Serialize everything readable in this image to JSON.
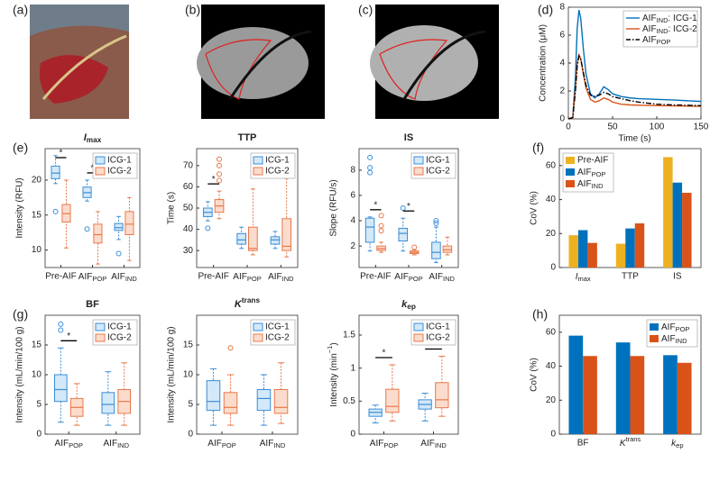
{
  "panel_labels": [
    "(a)",
    "(b)",
    "(c)",
    "(d)",
    "(e)",
    "(f)",
    "(g)",
    "(h)"
  ],
  "chart_data": [
    {
      "type": "line",
      "xlabel": "Time (s)",
      "ylabel": "Concentration (μM)",
      "xlim": [
        0,
        150
      ],
      "ylim": [
        0,
        8
      ],
      "xticks": [
        0,
        50,
        100,
        150
      ],
      "yticks": [
        0,
        2,
        4,
        6,
        8
      ],
      "legend": "upper right",
      "x": [
        0,
        5,
        8,
        10,
        12,
        14,
        17,
        20,
        25,
        30,
        35,
        40,
        45,
        50,
        60,
        70,
        80,
        100,
        120,
        150
      ],
      "series": [
        {
          "name": {
            "main": "AIF",
            "sub": "IND",
            "rest": ": ICG-1"
          },
          "color": "#0072bd",
          "style": "solid",
          "values": [
            0,
            0.1,
            3,
            6.5,
            7.8,
            7.2,
            5,
            3.2,
            1.8,
            1.5,
            1.8,
            2.3,
            2.1,
            1.8,
            1.6,
            1.5,
            1.45,
            1.4,
            1.35,
            1.25
          ]
        },
        {
          "name": {
            "main": "AIF",
            "sub": "IND",
            "rest": ": ICG-2"
          },
          "color": "#d95319",
          "style": "solid",
          "values": [
            0,
            0.1,
            2.2,
            4,
            4.6,
            4.3,
            3.2,
            2.2,
            1.4,
            1.2,
            1.3,
            1.5,
            1.4,
            1.2,
            1.05,
            1,
            0.98,
            0.95,
            0.93,
            0.9
          ]
        },
        {
          "name": {
            "main": "AIF",
            "sub": "POP"
          },
          "color": "#000000",
          "style": "dashdot",
          "values": [
            0,
            0.1,
            2,
            3.8,
            4.5,
            4.3,
            3.3,
            2.4,
            1.7,
            1.6,
            1.7,
            1.9,
            1.8,
            1.6,
            1.45,
            1.3,
            1.2,
            1.05,
            1,
            0.95
          ]
        }
      ]
    },
    {
      "type": "boxplot",
      "title": {
        "main": "I",
        "sub": "max"
      },
      "ylabel": "Intensity (RFU)",
      "ylim": [
        7.5,
        24.5
      ],
      "yticks": [
        10,
        15,
        20
      ],
      "categories": [
        "Pre-AIF",
        {
          "main": "AIF",
          "sub": "POP"
        },
        {
          "main": "AIF",
          "sub": "IND"
        }
      ],
      "stars": [
        "*",
        "*",
        null
      ],
      "series": [
        {
          "name": "ICG-1",
          "color": "#3b8ed8",
          "fill": "#d3e8f8",
          "boxes": [
            {
              "min": 19.5,
              "q1": 20.2,
              "median": 21,
              "q3": 22,
              "max": 23.5,
              "outliers": [
                15.5
              ]
            },
            {
              "min": 17,
              "q1": 17.5,
              "median": 18.2,
              "q3": 19,
              "max": 20,
              "outliers": [
                13
              ]
            },
            {
              "min": 11.5,
              "q1": 12.8,
              "median": 13.2,
              "q3": 13.8,
              "max": 14.8,
              "outliers": [
                9.5
              ]
            }
          ]
        },
        {
          "name": "ICG-2",
          "color": "#e8784a",
          "fill": "#fbdccc",
          "boxes": [
            {
              "min": 10.3,
              "q1": 14,
              "median": 15.2,
              "q3": 16.5,
              "max": 20,
              "outliers": []
            },
            {
              "min": 8,
              "q1": 11,
              "median": 12.2,
              "q3": 13.7,
              "max": 15.5,
              "outliers": []
            },
            {
              "min": 8.5,
              "q1": 12.2,
              "median": 13.7,
              "q3": 15.5,
              "max": 17.5,
              "outliers": []
            }
          ]
        }
      ]
    },
    {
      "type": "boxplot",
      "title": "TTP",
      "ylabel": "Time (s)",
      "ylim": [
        22,
        78
      ],
      "yticks": [
        30,
        40,
        50,
        60,
        70
      ],
      "categories": [
        "Pre-AIF",
        {
          "main": "AIF",
          "sub": "POP"
        },
        {
          "main": "AIF",
          "sub": "IND"
        }
      ],
      "stars": [
        "*",
        null,
        null
      ],
      "series": [
        {
          "name": "ICG-1",
          "color": "#3b8ed8",
          "fill": "#d3e8f8",
          "boxes": [
            {
              "min": 44,
              "q1": 46,
              "median": 48,
              "q3": 50,
              "max": 53,
              "outliers": [
                40.5
              ]
            },
            {
              "min": 31,
              "q1": 33,
              "median": 35,
              "q3": 38,
              "max": 41,
              "outliers": []
            },
            {
              "min": 31,
              "q1": 33,
              "median": 35,
              "q3": 36.5,
              "max": 39,
              "outliers": []
            }
          ]
        },
        {
          "name": "ICG-2",
          "color": "#e8784a",
          "fill": "#fbdccc",
          "boxes": [
            {
              "min": 45,
              "q1": 48,
              "median": 51,
              "q3": 54,
              "max": 58,
              "outliers": [
                63,
                66,
                70,
                73
              ]
            },
            {
              "min": 28,
              "q1": 30,
              "median": 31,
              "q3": 41,
              "max": 59,
              "outliers": []
            },
            {
              "min": 27,
              "q1": 30,
              "median": 32,
              "q3": 45,
              "max": 64,
              "outliers": []
            }
          ]
        }
      ]
    },
    {
      "type": "boxplot",
      "title": "IS",
      "ylabel": "Slope (RFU/s)",
      "ylim": [
        0.3,
        9.7
      ],
      "yticks": [
        2,
        4,
        6,
        8
      ],
      "categories": [
        "Pre-AIF",
        {
          "main": "AIF",
          "sub": "POP"
        },
        {
          "main": "AIF",
          "sub": "IND"
        }
      ],
      "stars": [
        "*",
        "*",
        null
      ],
      "series": [
        {
          "name": "ICG-1",
          "color": "#3b8ed8",
          "fill": "#d3e8f8",
          "boxes": [
            {
              "min": 1.6,
              "q1": 2.3,
              "median": 3.5,
              "q3": 4.2,
              "max": 4.3,
              "outliers": [
                7.8,
                8.2,
                9
              ]
            },
            {
              "min": 1.6,
              "q1": 2.4,
              "median": 3,
              "q3": 3.4,
              "max": 4.2,
              "outliers": [
                5
              ]
            },
            {
              "min": 0.7,
              "q1": 1,
              "median": 1.5,
              "q3": 2.3,
              "max": 3.5,
              "outliers": [
                3.8,
                4
              ]
            }
          ]
        },
        {
          "name": "ICG-2",
          "color": "#e8784a",
          "fill": "#fbdccc",
          "boxes": [
            {
              "min": 1.5,
              "q1": 1.65,
              "median": 1.8,
              "q3": 2,
              "max": 2.3,
              "outliers": [
                3.2,
                3.6,
                4.4
              ]
            },
            {
              "min": 1.3,
              "q1": 1.4,
              "median": 1.5,
              "q3": 1.6,
              "max": 1.7,
              "outliers": [
                1.9
              ]
            },
            {
              "min": 1.3,
              "q1": 1.5,
              "median": 1.7,
              "q3": 2,
              "max": 2.7,
              "outliers": []
            }
          ]
        }
      ]
    },
    {
      "type": "bar",
      "ylabel": "CoV (%)",
      "ylim": [
        0,
        70
      ],
      "yticks": [
        0,
        20,
        40,
        60
      ],
      "legend": "upper left",
      "categories": [
        {
          "main": "I",
          "sub": "max"
        },
        "TTP",
        "IS"
      ],
      "series": [
        {
          "name": "Pre-AIF",
          "color": "#edb120",
          "values": [
            19,
            14,
            65
          ]
        },
        {
          "name": {
            "main": "AIF",
            "sub": "POP"
          },
          "color": "#0072bd",
          "values": [
            22,
            23,
            50
          ]
        },
        {
          "name": {
            "main": "AIF",
            "sub": "IND"
          },
          "color": "#d95319",
          "values": [
            14.5,
            26,
            44
          ]
        }
      ]
    },
    {
      "type": "boxplot",
      "title": "BF",
      "ylabel": "Intensity (mL/min/100 g)",
      "ylim": [
        0,
        20
      ],
      "yticks": [
        0,
        5,
        10,
        15
      ],
      "categories": [
        {
          "main": "AIF",
          "sub": "POP"
        },
        {
          "main": "AIF",
          "sub": "IND"
        }
      ],
      "stars": [
        "*",
        null
      ],
      "series": [
        {
          "name": "ICG-1",
          "color": "#3b8ed8",
          "fill": "#d3e8f8",
          "boxes": [
            {
              "min": 2,
              "q1": 5.5,
              "median": 7.5,
              "q3": 10,
              "max": 14.5,
              "outliers": [
                17.5,
                18.5
              ]
            },
            {
              "min": 1.5,
              "q1": 3.5,
              "median": 5,
              "q3": 7,
              "max": 10.5,
              "outliers": []
            }
          ]
        },
        {
          "name": "ICG-2",
          "color": "#e8784a",
          "fill": "#fbdccc",
          "boxes": [
            {
              "min": 1.5,
              "q1": 3,
              "median": 4.5,
              "q3": 6,
              "max": 8.5,
              "outliers": []
            },
            {
              "min": 1.5,
              "q1": 3.5,
              "median": 5.5,
              "q3": 7.5,
              "max": 12,
              "outliers": []
            }
          ]
        }
      ]
    },
    {
      "type": "boxplot",
      "title": {
        "main": "K",
        "sup": "trans"
      },
      "ylabel": "Intensity (mL/min/100 g)",
      "ylim": [
        0,
        20
      ],
      "yticks": [
        0,
        5,
        10,
        15
      ],
      "categories": [
        {
          "main": "AIF",
          "sub": "POP"
        },
        {
          "main": "AIF",
          "sub": "IND"
        }
      ],
      "stars": [
        null,
        null
      ],
      "series": [
        {
          "name": "ICG-1",
          "color": "#3b8ed8",
          "fill": "#d3e8f8",
          "boxes": [
            {
              "min": 1.5,
              "q1": 4,
              "median": 5.5,
              "q3": 9,
              "max": 11,
              "outliers": []
            },
            {
              "min": 1.5,
              "q1": 4,
              "median": 6,
              "q3": 7.5,
              "max": 10,
              "outliers": []
            }
          ]
        },
        {
          "name": "ICG-2",
          "color": "#e8784a",
          "fill": "#fbdccc",
          "boxes": [
            {
              "min": 1.5,
              "q1": 3.5,
              "median": 4.5,
              "q3": 7,
              "max": 10,
              "outliers": [
                14.5
              ]
            },
            {
              "min": 1.8,
              "q1": 3.5,
              "median": 4.5,
              "q3": 7.5,
              "max": 12,
              "outliers": []
            }
          ]
        }
      ]
    },
    {
      "type": "boxplot",
      "title": {
        "main": "k",
        "sub": "ep"
      },
      "ylabel": {
        "main": "Intensity (min",
        "sup": "−1",
        "rest": ")"
      },
      "ylim": [
        0,
        1.8
      ],
      "yticks": [
        0,
        0.5,
        1,
        1.5
      ],
      "categories": [
        {
          "main": "AIF",
          "sub": "POP"
        },
        {
          "main": "AIF",
          "sub": "IND"
        }
      ],
      "stars": [
        "*",
        "*"
      ],
      "series": [
        {
          "name": "ICG-1",
          "color": "#3b8ed8",
          "fill": "#d3e8f8",
          "boxes": [
            {
              "min": 0.17,
              "q1": 0.27,
              "median": 0.33,
              "q3": 0.38,
              "max": 0.44,
              "outliers": []
            },
            {
              "min": 0.2,
              "q1": 0.38,
              "median": 0.45,
              "q3": 0.52,
              "max": 0.62,
              "outliers": []
            }
          ]
        },
        {
          "name": "ICG-2",
          "color": "#e8784a",
          "fill": "#fbdccc",
          "boxes": [
            {
              "min": 0.2,
              "q1": 0.33,
              "median": 0.42,
              "q3": 0.68,
              "max": 1.05,
              "outliers": []
            },
            {
              "min": 0.27,
              "q1": 0.4,
              "median": 0.52,
              "q3": 0.78,
              "max": 1.18,
              "outliers": []
            }
          ]
        }
      ]
    },
    {
      "type": "bar",
      "ylabel": "CoV (%)",
      "ylim": [
        0,
        70
      ],
      "yticks": [
        0,
        20,
        40,
        60
      ],
      "legend": "upper right",
      "categories": [
        "BF",
        {
          "main": "K",
          "sup": "trans"
        },
        {
          "main": "k",
          "sub": "ep"
        }
      ],
      "series": [
        {
          "name": {
            "main": "AIF",
            "sub": "POP"
          },
          "color": "#0072bd",
          "values": [
            58,
            54,
            46.5
          ]
        },
        {
          "name": {
            "main": "AIF",
            "sub": "IND"
          },
          "color": "#d95319",
          "values": [
            46,
            46,
            42
          ]
        }
      ]
    }
  ]
}
